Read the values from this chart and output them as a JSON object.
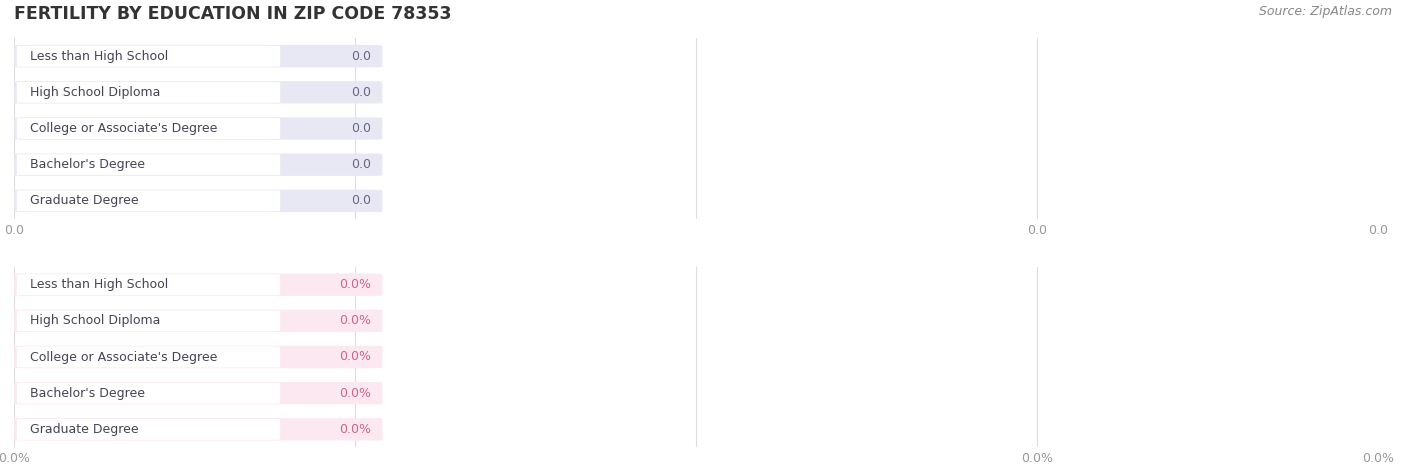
{
  "title": "FERTILITY BY EDUCATION IN ZIP CODE 78353",
  "source": "Source: ZipAtlas.com",
  "categories": [
    "Less than High School",
    "High School Diploma",
    "College or Associate's Degree",
    "Bachelor's Degree",
    "Graduate Degree"
  ],
  "values_top": [
    0.0,
    0.0,
    0.0,
    0.0,
    0.0
  ],
  "values_bottom": [
    0.0,
    0.0,
    0.0,
    0.0,
    0.0
  ],
  "top_bar_color": "#b0b0e0",
  "top_bar_bg": "#e8e8f4",
  "top_label_bg": "#ffffff",
  "bottom_bar_color": "#f4a0bc",
  "bottom_bar_bg": "#fce8f0",
  "bottom_label_bg": "#ffffff",
  "title_color": "#333333",
  "text_color": "#444455",
  "tick_color": "#999999",
  "bg_color": "#ffffff",
  "grid_color": "#dddddd",
  "top_value_label_suffix": "",
  "bottom_value_label_suffix": "%",
  "figsize": [
    14.06,
    4.76
  ],
  "dpi": 100
}
